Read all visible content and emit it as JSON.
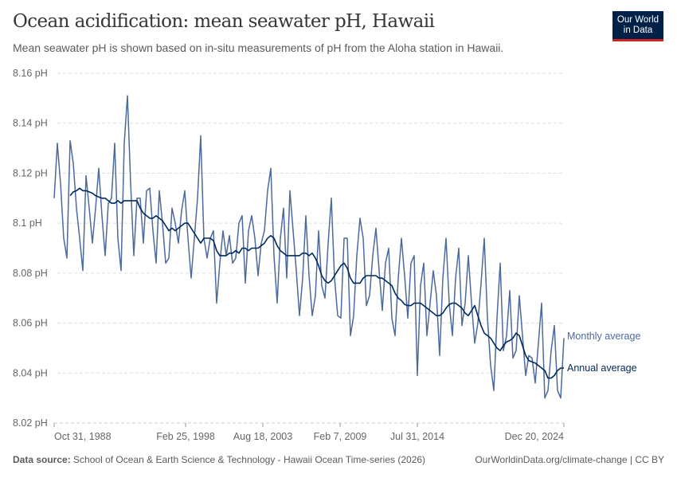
{
  "header": {
    "title": "Ocean acidification: mean seawater pH, Hawaii",
    "subtitle": "Mean seawater pH is shown based on in-situ measurements of pH from the Aloha station in Hawaii.",
    "logo": "Our World in Data",
    "logo_line1": "Our World",
    "logo_line2": "in Data"
  },
  "footer": {
    "source_label": "Data source:",
    "source_text": "School of Ocean & Earth Science & Technology - Hawaii Ocean Time-series (2026)",
    "link": "OurWorldinData.org/climate-change | CC BY"
  },
  "colors": {
    "monthly": "#4c6a9c",
    "annual": "#00295b",
    "grid": "#dddddd"
  },
  "chart_data": {
    "type": "line",
    "title": "Ocean acidification: mean seawater pH, Hawaii",
    "ylim": [
      8.02,
      8.16
    ],
    "yticks": [
      8.02,
      8.04,
      8.06,
      8.08,
      8.1,
      8.12,
      8.14,
      8.16
    ],
    "ytick_labels": [
      "8.02 pH",
      "8.04 pH",
      "8.06 pH",
      "8.08 pH",
      "8.1 pH",
      "8.12 pH",
      "8.14 pH",
      "8.16 pH"
    ],
    "xlim": [
      "1988-10-31",
      "2024-12-20"
    ],
    "xticks": [
      {
        "date": "1988-10-31",
        "label": "Oct 31, 1988"
      },
      {
        "date": "1998-02-25",
        "label": "Feb 25, 1998"
      },
      {
        "date": "2003-08-18",
        "label": "Aug 18, 2003"
      },
      {
        "date": "2009-02-07",
        "label": "Feb 7, 2009"
      },
      {
        "date": "2014-07-31",
        "label": "Jul 31, 2014"
      },
      {
        "date": "2024-12-20",
        "label": "Dec 20, 2024"
      }
    ],
    "grid": "horizontal dashed",
    "legend": "inline-right",
    "series": [
      {
        "name": "Monthly average",
        "start": "1988-10-31",
        "end": "2024-12-20",
        "values": [
          8.11,
          8.132,
          8.116,
          8.094,
          8.086,
          8.133,
          8.124,
          8.106,
          8.094,
          8.081,
          8.119,
          8.106,
          8.092,
          8.106,
          8.122,
          8.103,
          8.087,
          8.108,
          8.11,
          8.132,
          8.094,
          8.081,
          8.132,
          8.151,
          8.116,
          8.087,
          8.11,
          8.11,
          8.092,
          8.113,
          8.114,
          8.097,
          8.084,
          8.113,
          8.1,
          8.084,
          8.086,
          8.106,
          8.1,
          8.092,
          8.105,
          8.113,
          8.094,
          8.078,
          8.094,
          8.11,
          8.135,
          8.094,
          8.086,
          8.094,
          8.097,
          8.068,
          8.084,
          8.097,
          8.087,
          8.095,
          8.084,
          8.086,
          8.1,
          8.103,
          8.076,
          8.097,
          8.103,
          8.094,
          8.079,
          8.092,
          8.097,
          8.113,
          8.122,
          8.087,
          8.068,
          8.094,
          8.106,
          8.078,
          8.113,
          8.097,
          8.081,
          8.063,
          8.078,
          8.103,
          8.079,
          8.063,
          8.071,
          8.097,
          8.075,
          8.07,
          8.092,
          8.11,
          8.078,
          8.063,
          8.062,
          8.094,
          8.094,
          8.055,
          8.063,
          8.087,
          8.102,
          8.094,
          8.067,
          8.071,
          8.087,
          8.098,
          8.081,
          8.065,
          8.084,
          8.09,
          8.062,
          8.055,
          8.078,
          8.094,
          8.079,
          8.062,
          8.084,
          8.087,
          8.039,
          8.075,
          8.084,
          8.055,
          8.068,
          8.081,
          8.071,
          8.047,
          8.078,
          8.094,
          8.068,
          8.055,
          8.078,
          8.09,
          8.059,
          8.068,
          8.087,
          8.068,
          8.052,
          8.06,
          8.076,
          8.094,
          8.062,
          8.043,
          8.033,
          8.062,
          8.084,
          8.049,
          8.055,
          8.073,
          8.046,
          8.049,
          8.071,
          8.055,
          8.039,
          8.047,
          8.046,
          8.036,
          8.052,
          8.068,
          8.03,
          8.033,
          8.049,
          8.059,
          8.033,
          8.03,
          8.054
        ]
      },
      {
        "name": "Annual average",
        "start": "1988-10-31",
        "end": "2024-12-20",
        "values": [
          null,
          null,
          null,
          null,
          null,
          8.111,
          8.1125,
          8.113,
          8.114,
          8.113,
          8.113,
          8.1125,
          8.112,
          8.111,
          8.1105,
          8.11,
          8.11,
          8.109,
          8.108,
          8.108,
          8.109,
          8.108,
          8.109,
          8.109,
          8.109,
          8.109,
          8.109,
          8.106,
          8.104,
          8.103,
          8.102,
          8.102,
          8.103,
          8.102,
          8.101,
          8.099,
          8.097,
          8.098,
          8.097,
          8.098,
          8.099,
          8.1,
          8.1,
          8.098,
          8.096,
          8.094,
          8.092,
          8.094,
          8.094,
          8.094,
          8.093,
          8.089,
          8.087,
          8.087,
          8.087,
          8.088,
          8.088,
          8.089,
          8.088,
          8.09,
          8.09,
          8.089,
          8.09,
          8.09,
          8.09,
          8.091,
          8.092,
          8.094,
          8.095,
          8.094,
          8.091,
          8.089,
          8.088,
          8.087,
          8.087,
          8.087,
          8.087,
          8.087,
          8.088,
          8.088,
          8.087,
          8.088,
          8.086,
          8.083,
          8.079,
          8.077,
          8.076,
          8.077,
          8.079,
          8.081,
          8.083,
          8.084,
          8.082,
          8.078,
          8.076,
          8.076,
          8.076,
          8.078,
          8.079,
          8.079,
          8.079,
          8.079,
          8.078,
          8.078,
          8.077,
          8.076,
          8.075,
          8.072,
          8.07,
          8.069,
          8.0675,
          8.067,
          8.067,
          8.068,
          8.068,
          8.068,
          8.067,
          8.066,
          8.065,
          8.064,
          8.063,
          8.063,
          8.064,
          8.066,
          8.0675,
          8.068,
          8.068,
          8.067,
          8.066,
          8.064,
          8.063,
          8.065,
          8.067,
          8.063,
          8.059,
          8.056,
          8.055,
          8.054,
          8.052,
          8.05,
          8.049,
          8.051,
          8.0525,
          8.053,
          8.054,
          8.056,
          8.055,
          8.051,
          8.047,
          8.045,
          8.0445,
          8.044,
          8.043,
          8.042,
          8.041,
          8.038,
          8.038,
          8.039,
          8.041,
          8.042,
          8.042
        ]
      }
    ]
  }
}
